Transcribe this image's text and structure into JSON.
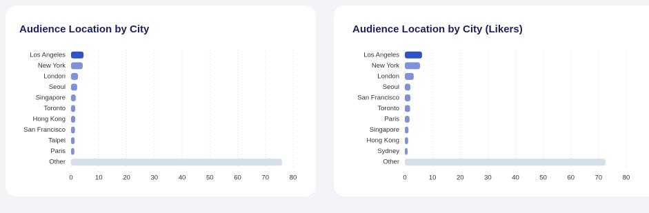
{
  "chart_data": [
    {
      "type": "bar",
      "orientation": "horizontal",
      "title": "Audience Location by City",
      "categories": [
        "Los Angeles",
        "New York",
        "London",
        "Seoul",
        "Singapore",
        "Toronto",
        "Hong Kong",
        "San Francisco",
        "Taipei",
        "Paris",
        "Other"
      ],
      "values": [
        4.5,
        4.2,
        2.5,
        2.2,
        1.7,
        1.5,
        1.5,
        1.4,
        1.3,
        1.2,
        76
      ],
      "colors": [
        "#2f52c6",
        "#7e92d8",
        "#7e92d8",
        "#7e92d8",
        "#7e92d8",
        "#7e92d8",
        "#7e92d8",
        "#7e92d8",
        "#7e92d8",
        "#7e92d8",
        "#d6dee7"
      ],
      "xlim": [
        0,
        80
      ],
      "xticks": [
        0,
        10,
        20,
        30,
        40,
        50,
        60,
        70,
        80
      ],
      "grid": true
    },
    {
      "type": "bar",
      "orientation": "horizontal",
      "title": "Audience Location by City (Likers)",
      "categories": [
        "Los Angeles",
        "New York",
        "London",
        "Seoul",
        "San Francisco",
        "Toronto",
        "Paris",
        "Singapore",
        "Hong Kong",
        "Sydney",
        "Other"
      ],
      "values": [
        6.2,
        5.5,
        3.2,
        2.0,
        2.0,
        1.9,
        1.7,
        1.3,
        1.2,
        1.0,
        72.5
      ],
      "colors": [
        "#2f52c6",
        "#7e92d8",
        "#7e92d8",
        "#7e92d8",
        "#7e92d8",
        "#7e92d8",
        "#7e92d8",
        "#7e92d8",
        "#7e92d8",
        "#7e92d8",
        "#d6dee7"
      ],
      "xlim": [
        0,
        80
      ],
      "xticks": [
        0,
        10,
        20,
        30,
        40,
        50,
        60,
        70,
        80
      ],
      "grid": true
    }
  ]
}
